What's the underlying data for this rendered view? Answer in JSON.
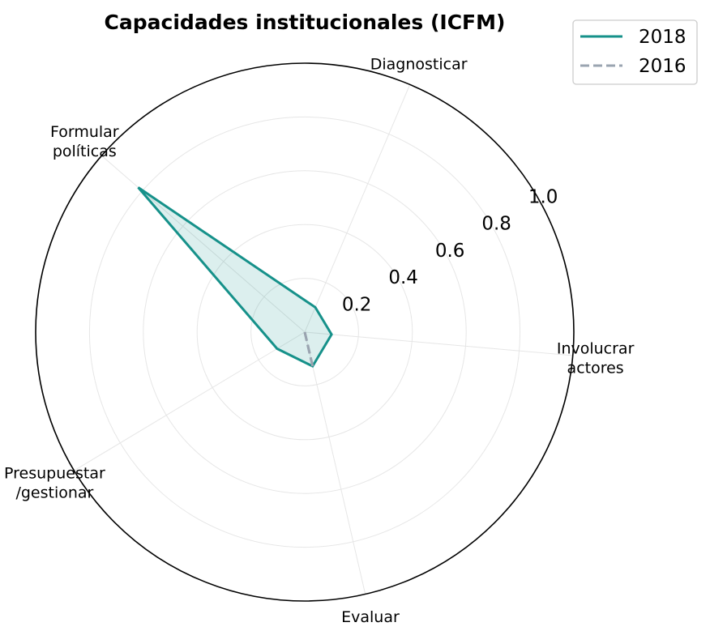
{
  "chart_data": {
    "type": "radar",
    "title": "Capacidades institucionales (ICFM)",
    "axes": [
      [
        "Involucrar",
        "actores"
      ],
      [
        "Diagnosticar"
      ],
      [
        "Formular",
        "políticas"
      ],
      [
        "Presupuestar",
        "/gestionar"
      ],
      [
        "Evaluar"
      ]
    ],
    "radial_ticks": [
      "0.2",
      "0.4",
      "0.6",
      "0.8",
      "1.0"
    ],
    "radial_tick_values": [
      0.2,
      0.4,
      0.6,
      0.8,
      1.0
    ],
    "rlim": [
      0,
      1.0
    ],
    "grid": true,
    "legend": {
      "position": "top-right"
    },
    "series": [
      {
        "name": "2018",
        "values": [
          0.1,
          0.1,
          0.82,
          0.12,
          0.13
        ],
        "color": "#16918a",
        "line_style": "solid",
        "fill": true
      },
      {
        "name": "2016",
        "values": [
          0.0,
          0.0,
          0.0,
          0.0,
          0.13
        ],
        "color": "#9aa4b0",
        "line_style": "dashed",
        "fill": false
      }
    ]
  }
}
